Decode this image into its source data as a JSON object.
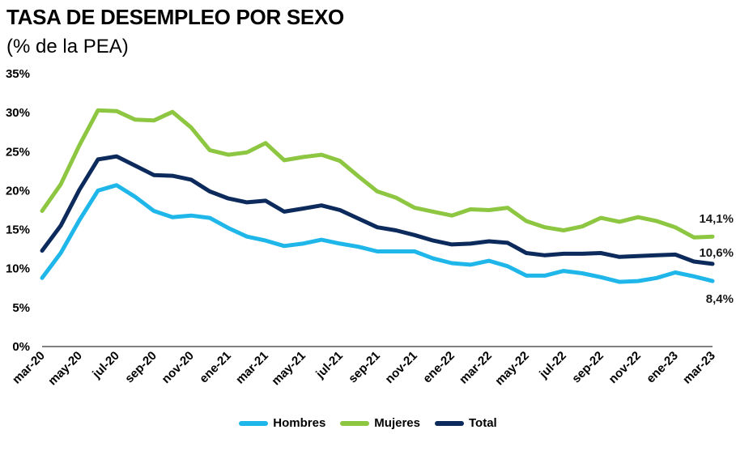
{
  "chart_data": {
    "type": "line",
    "title": "TASA DE DESEMPLEO POR SEXO",
    "subtitle": "(% de la PEA)",
    "ylim": [
      0,
      35
    ],
    "yticks": [
      "0%",
      "5%",
      "10%",
      "15%",
      "20%",
      "25%",
      "30%",
      "35%"
    ],
    "x": [
      "mar-20",
      "abr-20",
      "may-20",
      "jun-20",
      "jul-20",
      "ago-20",
      "sep-20",
      "oct-20",
      "nov-20",
      "dic-20",
      "ene-21",
      "feb-21",
      "mar-21",
      "abr-21",
      "may-21",
      "jun-21",
      "jul-21",
      "ago-21",
      "sep-21",
      "oct-21",
      "nov-21",
      "dic-21",
      "ene-22",
      "feb-22",
      "mar-22",
      "abr-22",
      "may-22",
      "jun-22",
      "jul-22",
      "ago-22",
      "sep-22",
      "oct-22",
      "nov-22",
      "dic-22",
      "ene-23",
      "feb-23",
      "mar-23"
    ],
    "x_tick_labels": [
      "mar-20",
      "may-20",
      "jul-20",
      "sep-20",
      "nov-20",
      "ene-21",
      "mar-21",
      "may-21",
      "jul-21",
      "sep-21",
      "nov-21",
      "ene-22",
      "mar-22",
      "may-22",
      "jul-22",
      "sep-22",
      "nov-22",
      "ene-23",
      "mar-23"
    ],
    "grid": false,
    "legend_position": "bottom",
    "series": [
      {
        "name": "Hombres",
        "color": "#1fb6ea",
        "values": [
          8.8,
          12.0,
          16.2,
          20.0,
          20.7,
          19.2,
          17.4,
          16.6,
          16.8,
          16.5,
          15.2,
          14.1,
          13.6,
          12.9,
          13.2,
          13.7,
          13.2,
          12.8,
          12.2,
          12.2,
          12.2,
          11.3,
          10.7,
          10.5,
          11.0,
          10.3,
          9.1,
          9.1,
          9.7,
          9.4,
          8.9,
          8.3,
          8.4,
          8.8,
          9.5,
          9.0,
          8.4
        ],
        "end_label": "8,4%"
      },
      {
        "name": "Mujeres",
        "color": "#8dc641",
        "values": [
          17.4,
          20.8,
          25.8,
          30.3,
          30.2,
          29.1,
          29.0,
          30.1,
          28.1,
          25.2,
          24.6,
          24.9,
          26.1,
          23.9,
          24.3,
          24.6,
          23.8,
          21.8,
          19.9,
          19.1,
          17.8,
          17.3,
          16.8,
          17.6,
          17.5,
          17.8,
          16.1,
          15.3,
          14.9,
          15.4,
          16.5,
          16.0,
          16.6,
          16.1,
          15.3,
          14.0,
          14.1
        ],
        "end_label": "14,1%"
      },
      {
        "name": "Total",
        "color": "#0c2a5b",
        "values": [
          12.3,
          15.5,
          20.1,
          24.0,
          24.4,
          23.2,
          22.0,
          21.9,
          21.4,
          19.9,
          19.0,
          18.5,
          18.7,
          17.3,
          17.7,
          18.1,
          17.5,
          16.4,
          15.3,
          14.9,
          14.3,
          13.6,
          13.1,
          13.2,
          13.5,
          13.3,
          12.0,
          11.7,
          11.9,
          11.9,
          12.0,
          11.5,
          11.6,
          11.7,
          11.8,
          10.9,
          10.6
        ],
        "end_label": "10,6%"
      }
    ]
  }
}
